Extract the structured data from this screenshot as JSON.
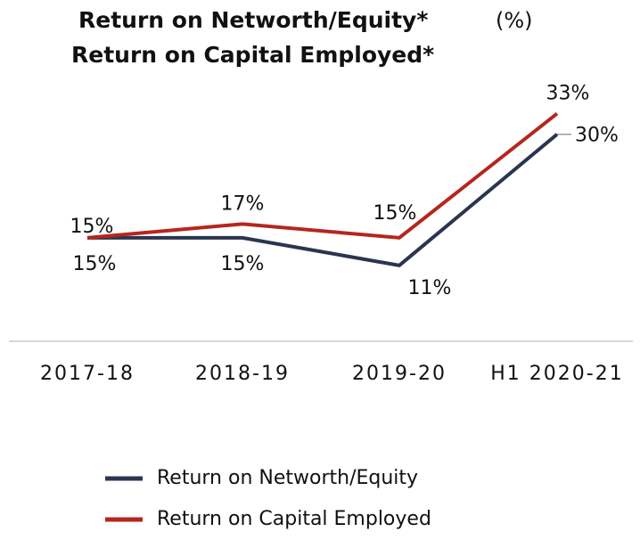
{
  "chart_data": {
    "type": "line",
    "title": [
      "Return on Networth/Equity*",
      "Return on Capital Employed*"
    ],
    "unit": "(%)",
    "categories": [
      "2017-18",
      "2018-19",
      "2019-20",
      "H1 2020-21"
    ],
    "series": [
      {
        "name": "Return on Networth/Equity",
        "color": "#2b3550",
        "values": [
          15,
          15,
          11,
          30
        ],
        "value_labels": [
          "15%",
          "15%",
          "11%",
          "30%"
        ]
      },
      {
        "name": "Return on Capital Employed",
        "color": "#b5261e",
        "values": [
          15,
          17,
          15,
          33
        ],
        "value_labels": [
          "15%",
          "17%",
          "15%",
          "33%"
        ]
      }
    ],
    "ylim": [
      0,
      35
    ]
  }
}
